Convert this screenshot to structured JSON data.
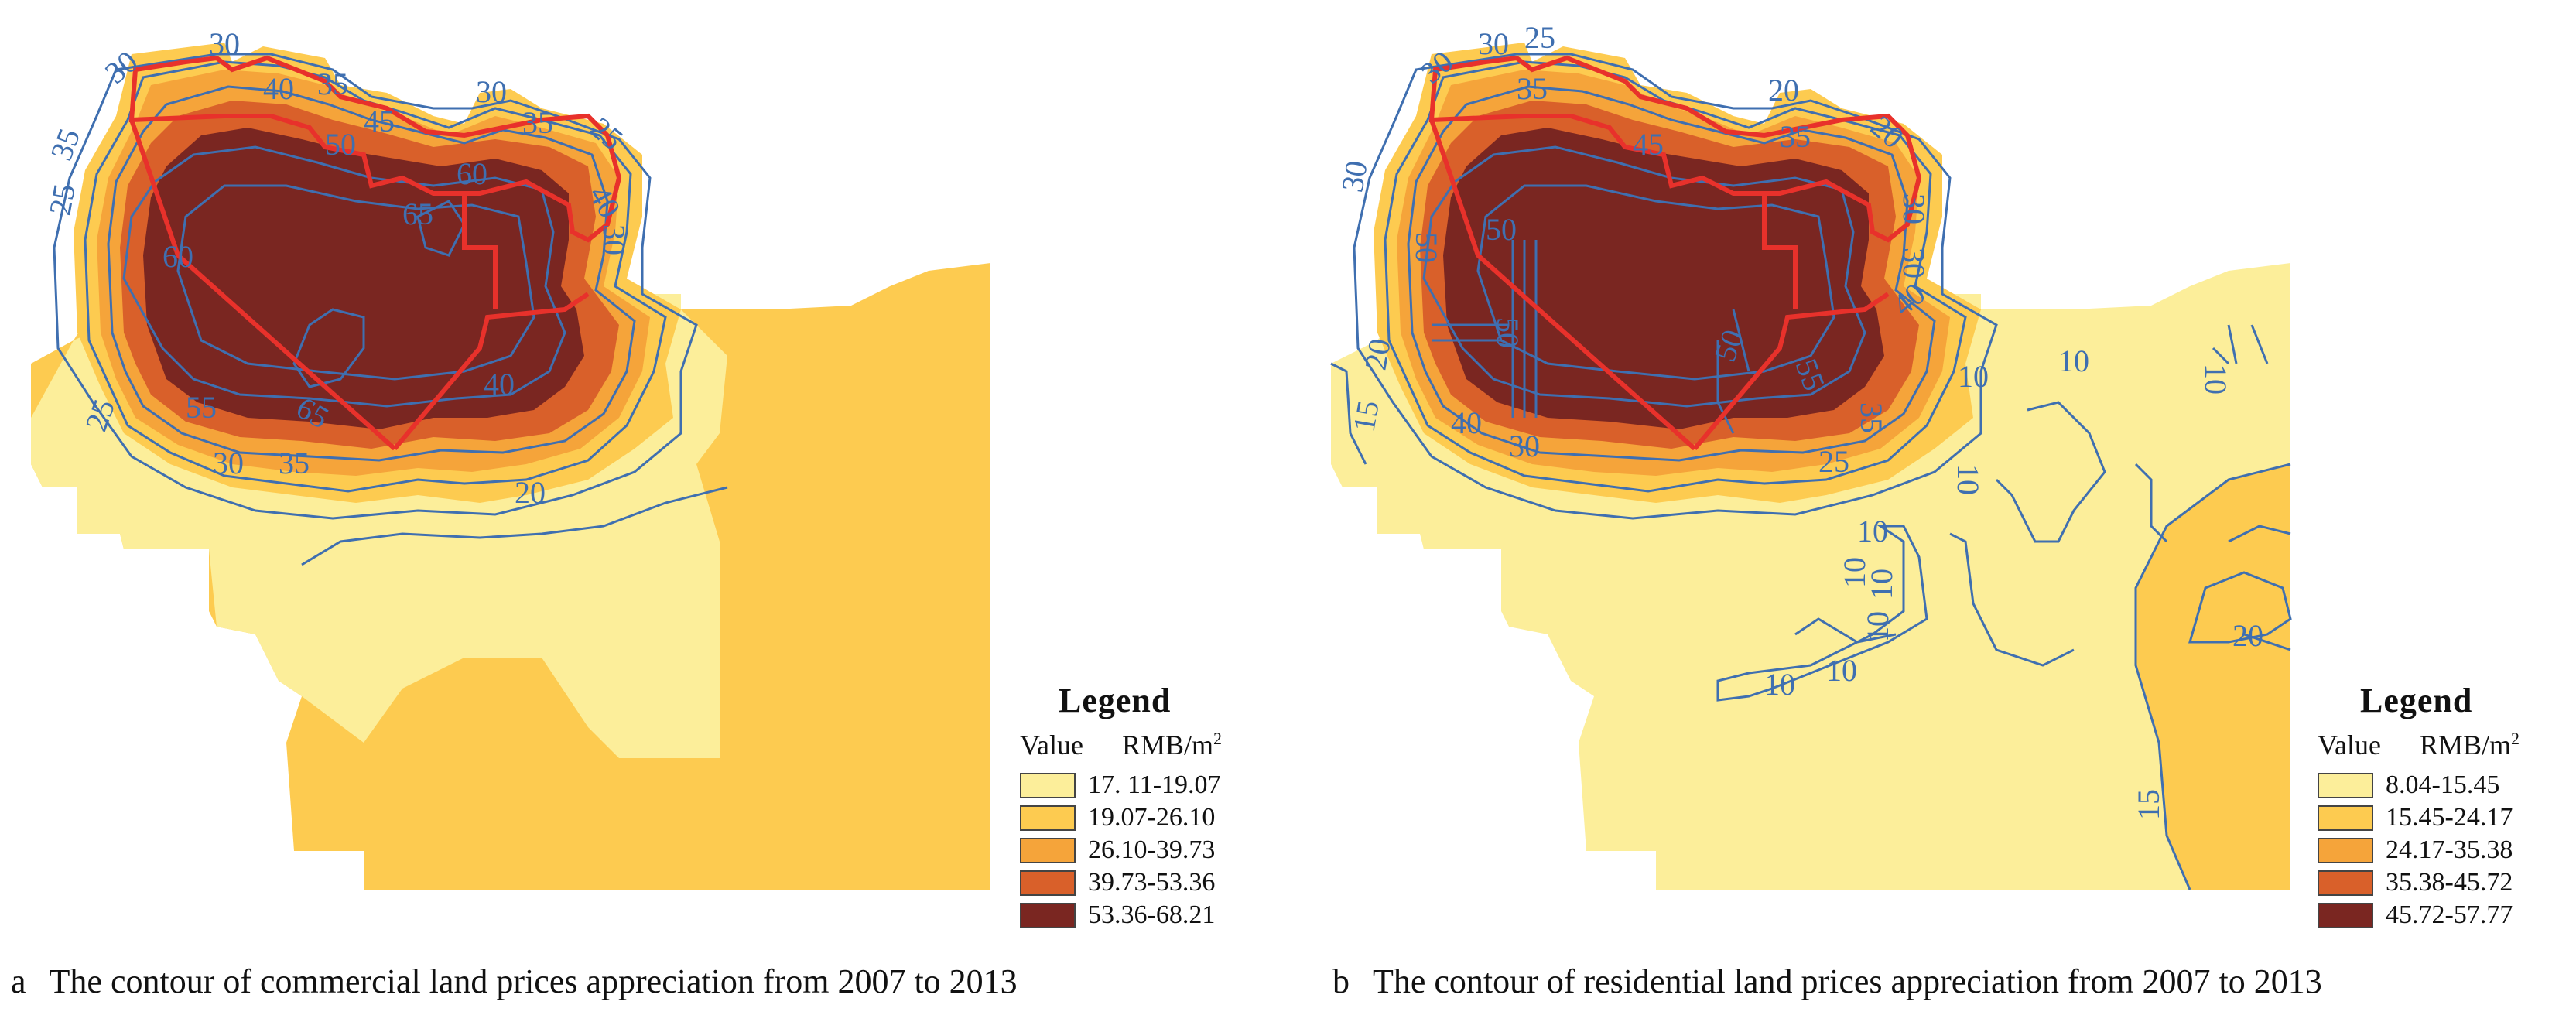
{
  "panels": [
    {
      "id": "a",
      "letter": "a",
      "caption": "The contour of commercial land prices appreciation from 2007 to 2013",
      "legend": {
        "title": "Legend",
        "value_label": "Value",
        "unit_label": "RMB/m",
        "unit_sup": "2",
        "classes": [
          {
            "range": "17. 11-19.07",
            "color": "#fcee9a"
          },
          {
            "range": "19.07-26.10",
            "color": "#fdcb50"
          },
          {
            "range": "26.10-39.73",
            "color": "#f5a43a"
          },
          {
            "range": "39.73-53.36",
            "color": "#d9602a"
          },
          {
            "range": "53.36-68.21",
            "color": "#7a2621"
          }
        ]
      },
      "contour_labels": [
        "30",
        "30",
        "40",
        "35",
        "45",
        "50",
        "30",
        "35",
        "25",
        "60",
        "65",
        "40",
        "30",
        "35",
        "25",
        "60",
        "65",
        "55",
        "25",
        "40",
        "30",
        "35",
        "20"
      ]
    },
    {
      "id": "b",
      "letter": "b",
      "caption": "The contour of residential land prices appreciation from 2007 to 2013",
      "legend": {
        "title": "Legend",
        "value_label": "Value",
        "unit_label": "RMB/m",
        "unit_sup": "2",
        "classes": [
          {
            "range": "8.04-15.45",
            "color": "#fcee9a"
          },
          {
            "range": "15.45-24.17",
            "color": "#fdcb50"
          },
          {
            "range": "24.17-35.38",
            "color": "#f5a43a"
          },
          {
            "range": "35.38-45.72",
            "color": "#d9602a"
          },
          {
            "range": "45.72-57.77",
            "color": "#7a2621"
          }
        ]
      },
      "contour_labels": [
        "30",
        "25",
        "30",
        "35",
        "20",
        "20",
        "45",
        "35",
        "30",
        "30",
        "50",
        "50",
        "50",
        "30",
        "40",
        "20",
        "15",
        "40",
        "30",
        "50",
        "55",
        "35",
        "25",
        "10",
        "10",
        "10",
        "10",
        "10",
        "10",
        "10",
        "10",
        "10",
        "10",
        "20",
        "15"
      ]
    }
  ]
}
